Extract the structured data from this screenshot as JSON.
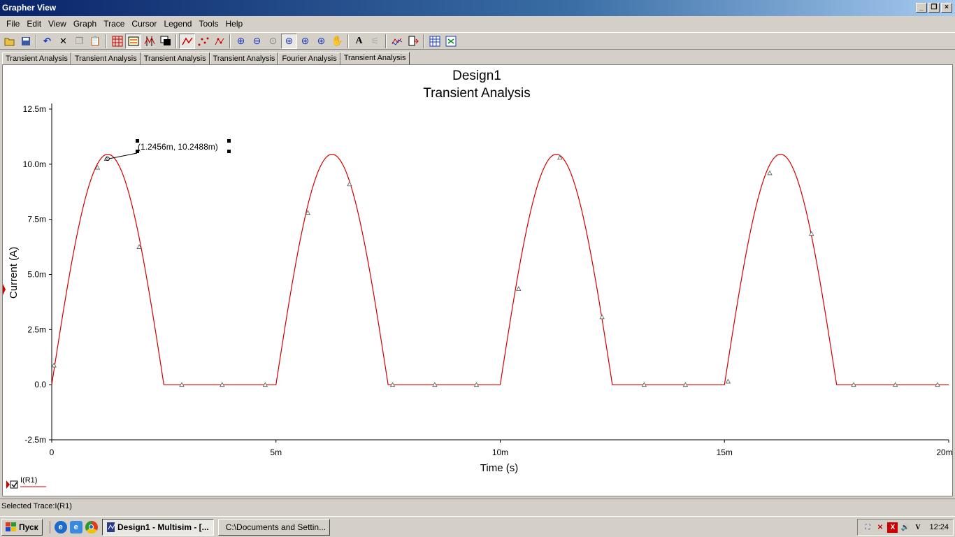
{
  "window": {
    "title": "Grapher View"
  },
  "menu": [
    "File",
    "Edit",
    "View",
    "Graph",
    "Trace",
    "Cursor",
    "Legend",
    "Tools",
    "Help"
  ],
  "toolbar_icons": [
    "open-icon",
    "save-icon",
    "undo-icon",
    "cut-icon",
    "copy-icon",
    "paste-icon",
    "grid-icon",
    "legend-icon",
    "cursors-icon",
    "overlay-icon",
    "trace-line-icon",
    "trace-dots-icon",
    "trace-lines-dots-icon",
    "zoom-in-icon",
    "zoom-out-icon",
    "zoom-area-icon",
    "zoom-fit-icon",
    "zoom-x-icon",
    "zoom-y-icon",
    "pan-icon",
    "text-icon",
    "reverse-colors-icon",
    "trace-props-icon",
    "export-icon",
    "print-icon",
    "excel-icon"
  ],
  "tabs": [
    "Transient Analysis",
    "Transient Analysis",
    "Transient Analysis",
    "Transient Analysis",
    "Fourier Analysis",
    "Transient Analysis"
  ],
  "active_tab": 5,
  "chart_data": {
    "type": "line",
    "title": "Design1",
    "subtitle": "Transient Analysis",
    "xlabel": "Time (s)",
    "ylabel": "Current (A)",
    "xlim": [
      0,
      0.02
    ],
    "ylim": [
      -0.0025,
      0.0125
    ],
    "xticks": [
      0,
      0.005,
      0.01,
      0.015,
      0.02
    ],
    "xtick_labels": [
      "0",
      "5m",
      "10m",
      "15m",
      "20m"
    ],
    "yticks": [
      -0.0025,
      0,
      0.0025,
      0.005,
      0.0075,
      0.01,
      0.0125
    ],
    "ytick_labels": [
      "-2.5m",
      "0.0",
      "2.5m",
      "5.0m",
      "7.5m",
      "10.0m",
      "12.5m"
    ],
    "grid": false,
    "legend_position": "bottom-left",
    "series": [
      {
        "name": "I(R1)",
        "color": "#d00000",
        "description": "half-wave rectified sine, period 5m, conduction 0 to 2.5m, peak 10.25m",
        "x": [
          0,
          0.0002,
          0.0005,
          0.0008,
          0.0011,
          0.00125,
          0.0014,
          0.0017,
          0.002,
          0.0023,
          0.0025,
          0.005,
          0.0052,
          0.0055,
          0.0058,
          0.0061,
          0.00625,
          0.0064,
          0.0067,
          0.007,
          0.0073,
          0.0075,
          0.01,
          0.0102,
          0.0105,
          0.0108,
          0.0111,
          0.01125,
          0.0114,
          0.0117,
          0.012,
          0.0123,
          0.0125,
          0.015,
          0.0152,
          0.0155,
          0.0158,
          0.0161,
          0.01625,
          0.0164,
          0.0167,
          0.017,
          0.0173,
          0.0175,
          0.02
        ],
        "y": [
          0,
          0.00257,
          0.00602,
          0.00883,
          0.01045,
          0.01025,
          0.01045,
          0.00883,
          0.00602,
          0.00257,
          0,
          0,
          0.00257,
          0.00602,
          0.00883,
          0.01045,
          0.01025,
          0.01045,
          0.00883,
          0.00602,
          0.00257,
          0,
          0,
          0.00257,
          0.00602,
          0.00883,
          0.01045,
          0.01025,
          0.01045,
          0.00883,
          0.00602,
          0.00257,
          0,
          0,
          0.00257,
          0.00602,
          0.00883,
          0.01045,
          0.01025,
          0.01045,
          0.00883,
          0.00602,
          0.00257,
          0,
          0
        ],
        "markers_x": [
          5e-05,
          0.00102,
          0.00122,
          0.00195,
          0.0029,
          0.0038,
          0.00476,
          0.00571,
          0.00664,
          0.0076,
          0.00854,
          0.00947,
          0.01041,
          0.01133,
          0.01227,
          0.01321,
          0.01413,
          0.01508,
          0.01601,
          0.01694,
          0.01788,
          0.01881,
          0.01975
        ],
        "markers_y": [
          0.00088,
          0.00985,
          0.01025,
          0.00625,
          0,
          0,
          0,
          0.0078,
          0.0091,
          0,
          0,
          0,
          0.00435,
          0.0103,
          0.00307,
          0,
          0,
          0.00015,
          0.0096,
          0.00685,
          0,
          0,
          0
        ]
      }
    ],
    "annotations": [
      {
        "text": "(1.2456m, 10.2488m)",
        "x": 0.0012456,
        "y": 0.0102488
      }
    ]
  },
  "status": {
    "text": "Selected Trace:I(R1)"
  },
  "taskbar": {
    "start_label": "Пуск",
    "tasks": [
      {
        "label": "Design1 - Multisim - [...",
        "active": true
      },
      {
        "label": "C:\\Documents and Settin...",
        "active": false
      }
    ],
    "clock": "12:24"
  }
}
